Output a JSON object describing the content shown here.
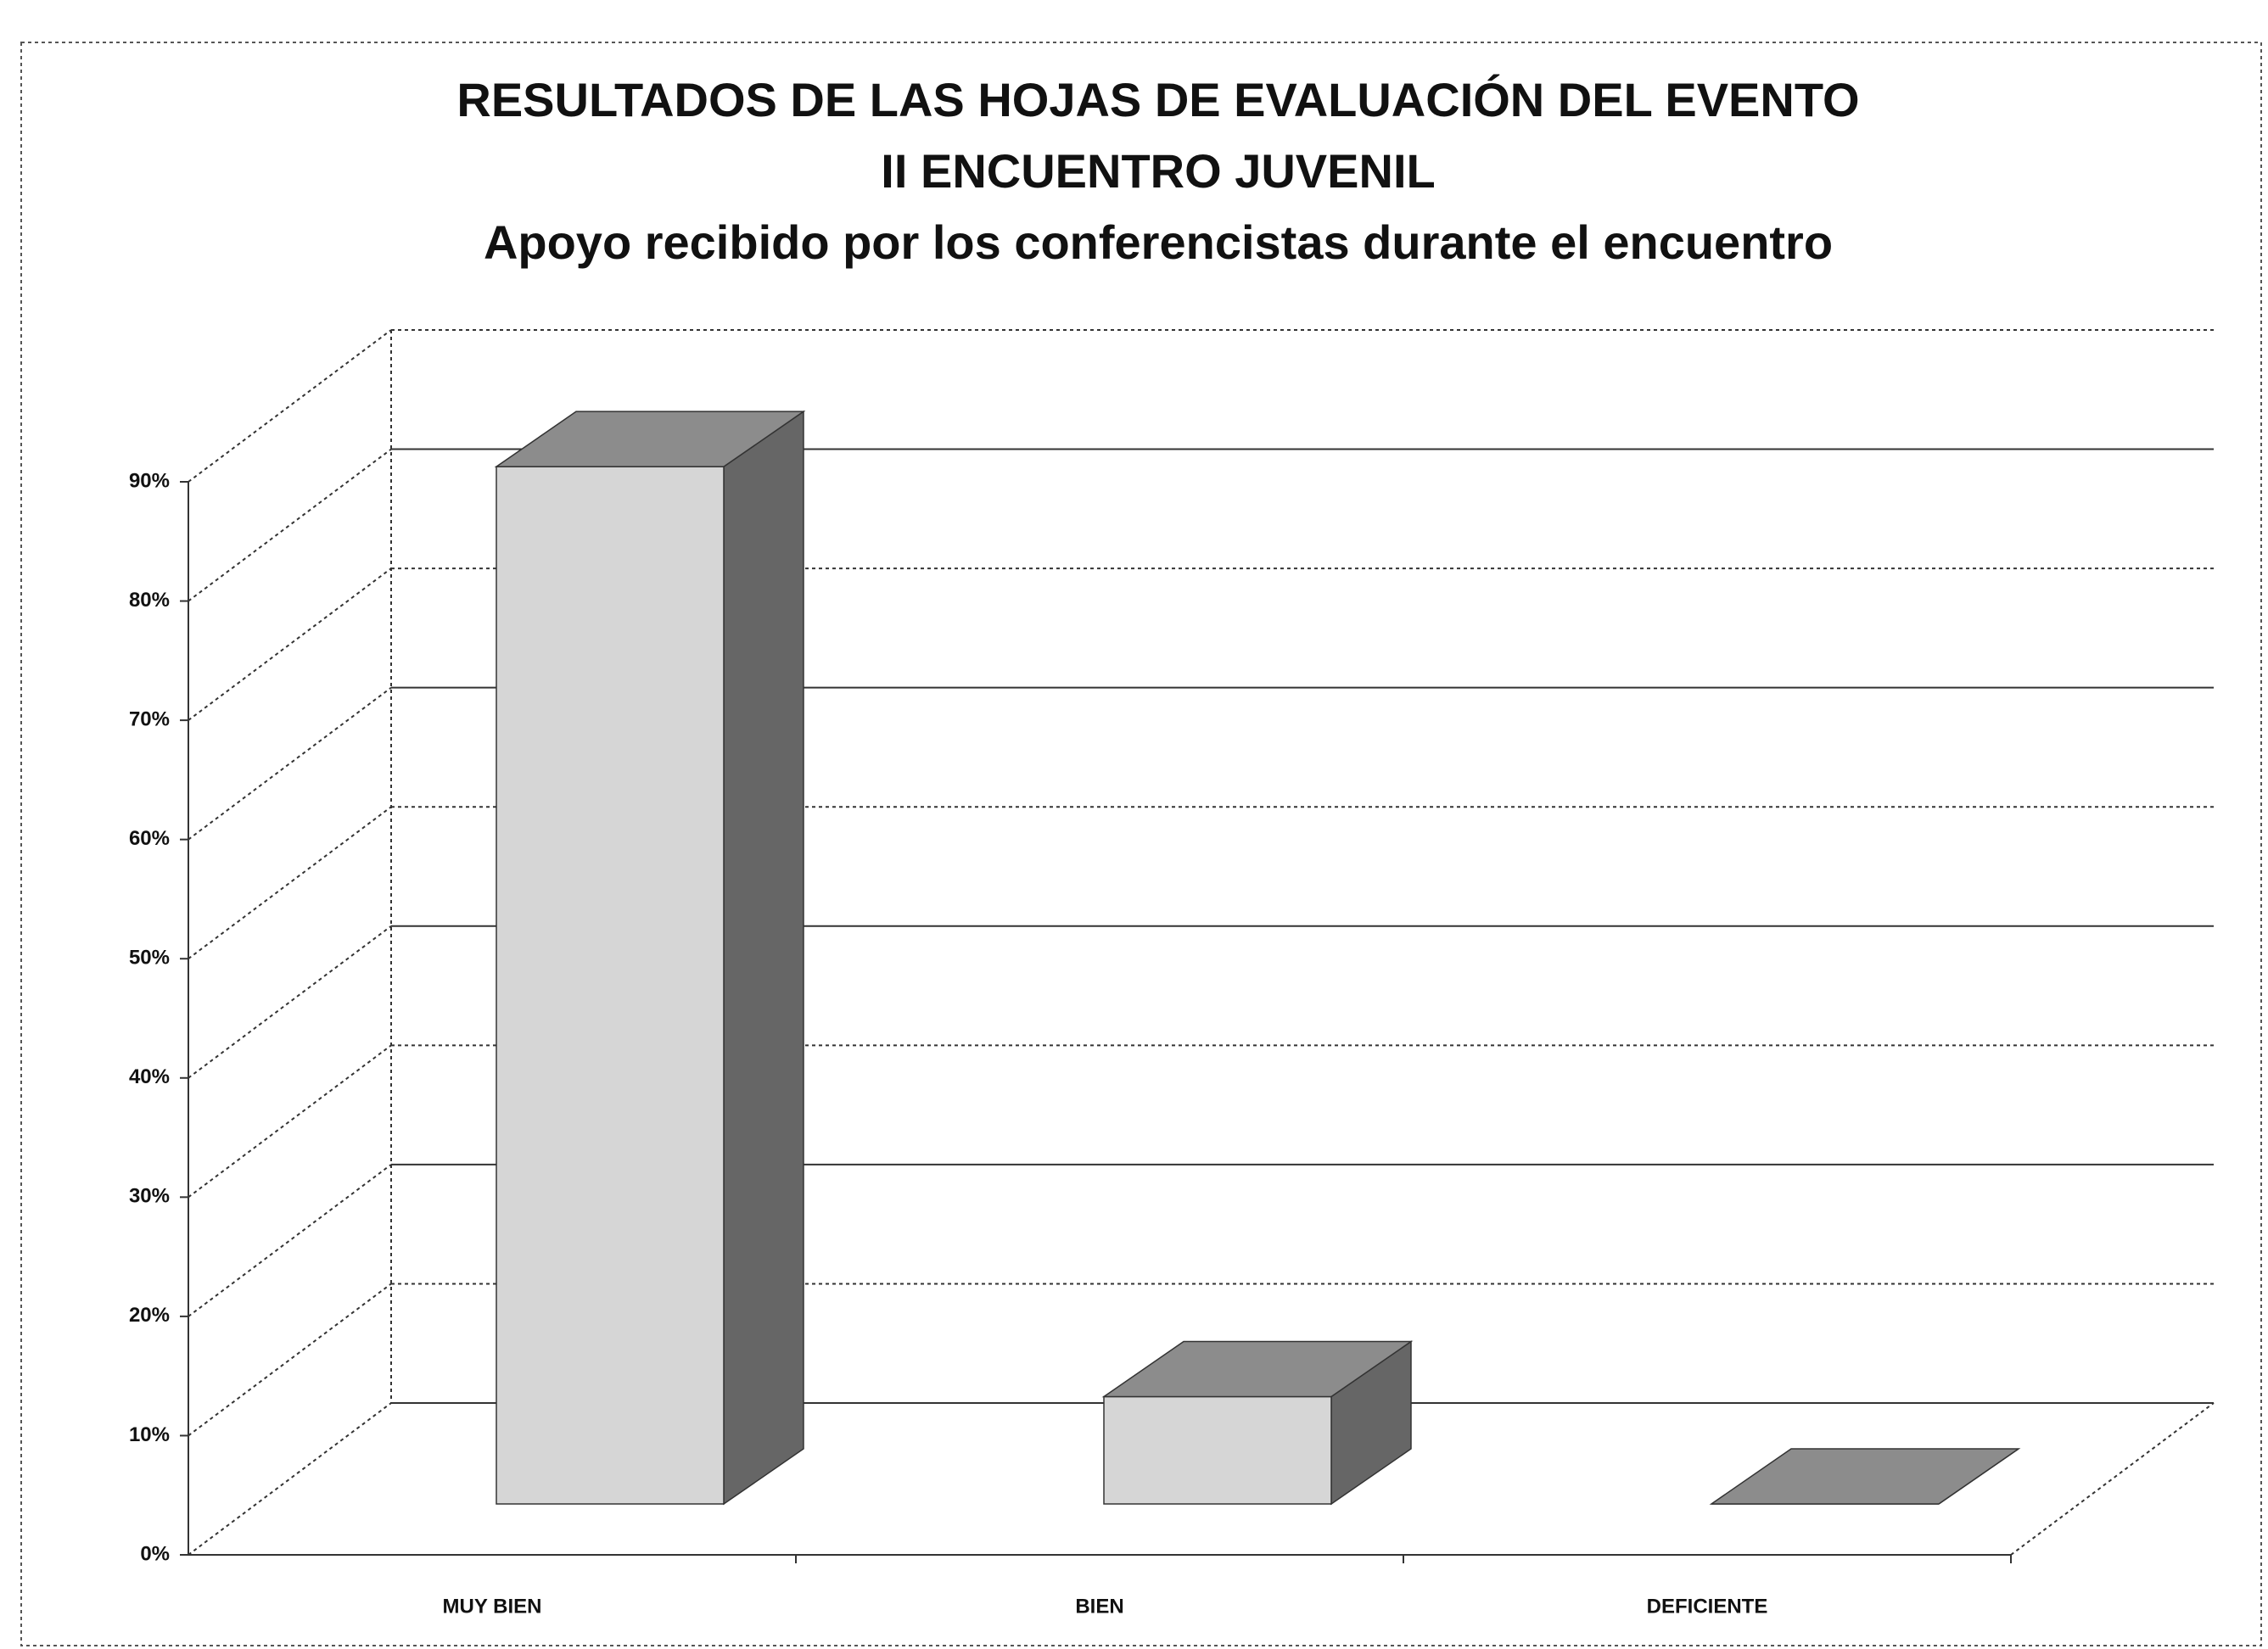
{
  "chart_data": {
    "type": "bar3d",
    "title": [
      "RESULTADOS DE LAS HOJAS DE EVALUACIÓN DEL EVENTO",
      "II ENCUENTRO JUVENIL",
      "Apoyo recibido por los conferencistas durante el encuentro"
    ],
    "categories": [
      "MUY BIEN",
      "BIEN",
      "DEFICIENTE"
    ],
    "values": [
      87,
      9,
      0
    ],
    "ylim": [
      0,
      90
    ],
    "yticks": [
      {
        "value": 0,
        "label": "0%"
      },
      {
        "value": 10,
        "label": "10%"
      },
      {
        "value": 20,
        "label": "20%"
      },
      {
        "value": 30,
        "label": "30%"
      },
      {
        "value": 40,
        "label": "40%"
      },
      {
        "value": 50,
        "label": "50%"
      },
      {
        "value": 60,
        "label": "60%"
      },
      {
        "value": 70,
        "label": "70%"
      },
      {
        "value": 80,
        "label": "80%"
      },
      {
        "value": 90,
        "label": "90%"
      }
    ],
    "grid": true,
    "colors": {
      "front": "#d6d6d6",
      "side": "#666666",
      "top": "#8c8c8c"
    }
  }
}
